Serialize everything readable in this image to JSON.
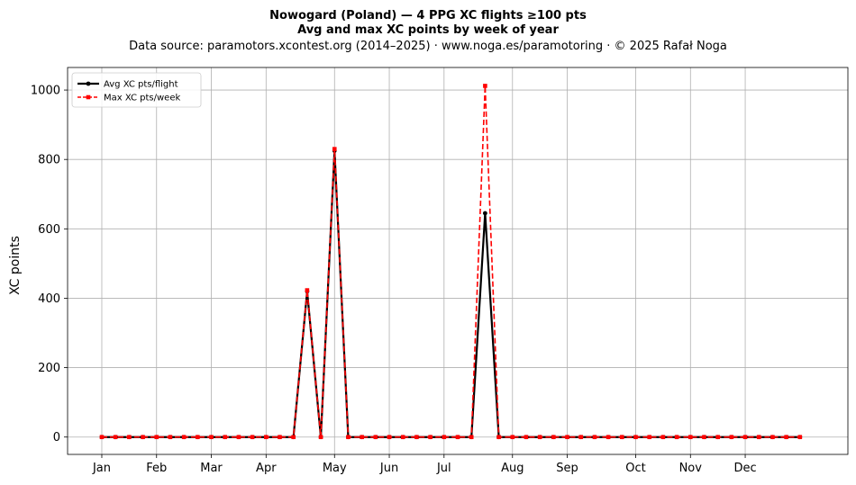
{
  "chart_data": {
    "type": "line",
    "title": "Nowogard (Poland)  —  4 PPG XC flights ≥100 pts",
    "title_line2": "Avg and max XC points by week of year",
    "subtitle": "Data source: paramotors.xcontest.org (2014–2025)  ·  www.noga.es/paramotoring  ·  © 2025 Rafał Noga",
    "xlabel": "",
    "ylabel": "XC points",
    "ylim": [
      -50,
      1065
    ],
    "xlim": [
      -2.5,
      54.5
    ],
    "grid": true,
    "legend_placement": "top-left",
    "x_ticks": [
      {
        "label": "Jan",
        "week": 0
      },
      {
        "label": "Feb",
        "week": 4
      },
      {
        "label": "Mar",
        "week": 8
      },
      {
        "label": "Apr",
        "week": 12
      },
      {
        "label": "May",
        "week": 17
      },
      {
        "label": "Jun",
        "week": 21
      },
      {
        "label": "Jul",
        "week": 25
      },
      {
        "label": "Aug",
        "week": 30
      },
      {
        "label": "Sep",
        "week": 34
      },
      {
        "label": "Oct",
        "week": 39
      },
      {
        "label": "Nov",
        "week": 43
      },
      {
        "label": "Dec",
        "week": 47
      }
    ],
    "y_ticks": [
      0,
      200,
      400,
      600,
      800,
      1000
    ],
    "x": [
      0,
      1,
      2,
      3,
      4,
      5,
      6,
      7,
      8,
      9,
      10,
      11,
      12,
      13,
      14,
      15,
      16,
      17,
      18,
      19,
      20,
      21,
      22,
      23,
      24,
      25,
      26,
      27,
      28,
      29,
      30,
      31,
      32,
      33,
      34,
      35,
      36,
      37,
      38,
      39,
      40,
      41,
      42,
      43,
      44,
      45,
      46,
      47,
      48,
      49,
      50,
      51
    ],
    "series": [
      {
        "name": "Avg XC pts/flight",
        "color": "#000000",
        "style": "solid",
        "marker": "circle",
        "values": [
          0,
          0,
          0,
          0,
          0,
          0,
          0,
          0,
          0,
          0,
          0,
          0,
          0,
          0,
          0,
          420,
          0,
          825,
          0,
          0,
          0,
          0,
          0,
          0,
          0,
          0,
          0,
          0,
          645,
          0,
          0,
          0,
          0,
          0,
          0,
          0,
          0,
          0,
          0,
          0,
          0,
          0,
          0,
          0,
          0,
          0,
          0,
          0,
          0,
          0,
          0,
          0
        ]
      },
      {
        "name": "Max XC pts/week",
        "color": "#ff0000",
        "style": "dashed",
        "marker": "square",
        "values": [
          0,
          0,
          0,
          0,
          0,
          0,
          0,
          0,
          0,
          0,
          0,
          0,
          0,
          0,
          0,
          423,
          0,
          830,
          0,
          0,
          0,
          0,
          0,
          0,
          0,
          0,
          0,
          0,
          1012,
          0,
          0,
          0,
          0,
          0,
          0,
          0,
          0,
          0,
          0,
          0,
          0,
          0,
          0,
          0,
          0,
          0,
          0,
          0,
          0,
          0,
          0,
          0
        ]
      }
    ]
  }
}
